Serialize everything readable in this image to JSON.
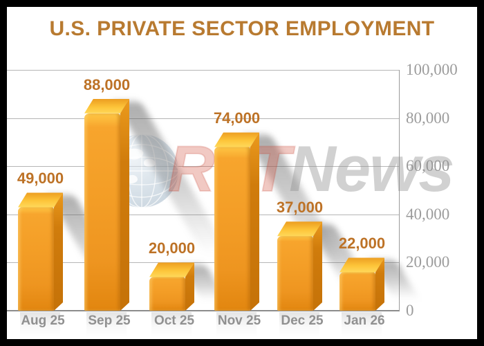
{
  "title": "U.S. PRIVATE SECTOR EMPLOYMENT",
  "watermark": {
    "rtt": "RTT",
    "news": "News"
  },
  "colors": {
    "title_text": "#b87a30",
    "value_label_text": "#bd7226",
    "bar_front": "#f39d26",
    "bar_top": "#ffd95c",
    "bar_side": "#c57208",
    "gridline": "#b5b5b5",
    "axis_text": "#9c9c9c",
    "category_text": "#909090",
    "frame_border": "#000000"
  },
  "chart_data": {
    "type": "bar",
    "title": "U.S. PRIVATE SECTOR EMPLOYMENT",
    "categories": [
      "Aug 25",
      "Sep 25",
      "Oct 25",
      "Nov 25",
      "Dec 25",
      "Jan 26"
    ],
    "values": [
      49000,
      88000,
      20000,
      74000,
      37000,
      22000
    ],
    "value_labels": [
      "49,000",
      "88,000",
      "20,000",
      "74,000",
      "37,000",
      "22,000"
    ],
    "xlabel": "",
    "ylabel": "",
    "ylim": [
      0,
      100000
    ],
    "yticks": [
      0,
      20000,
      40000,
      60000,
      80000,
      100000
    ],
    "ytick_labels": [
      "0",
      "20,000",
      "40,000",
      "60,000",
      "80,000",
      "100,000"
    ],
    "grid": true,
    "axis_side": "right",
    "legend": false,
    "style": "3d-bars-with-shadows-and-watermark"
  }
}
